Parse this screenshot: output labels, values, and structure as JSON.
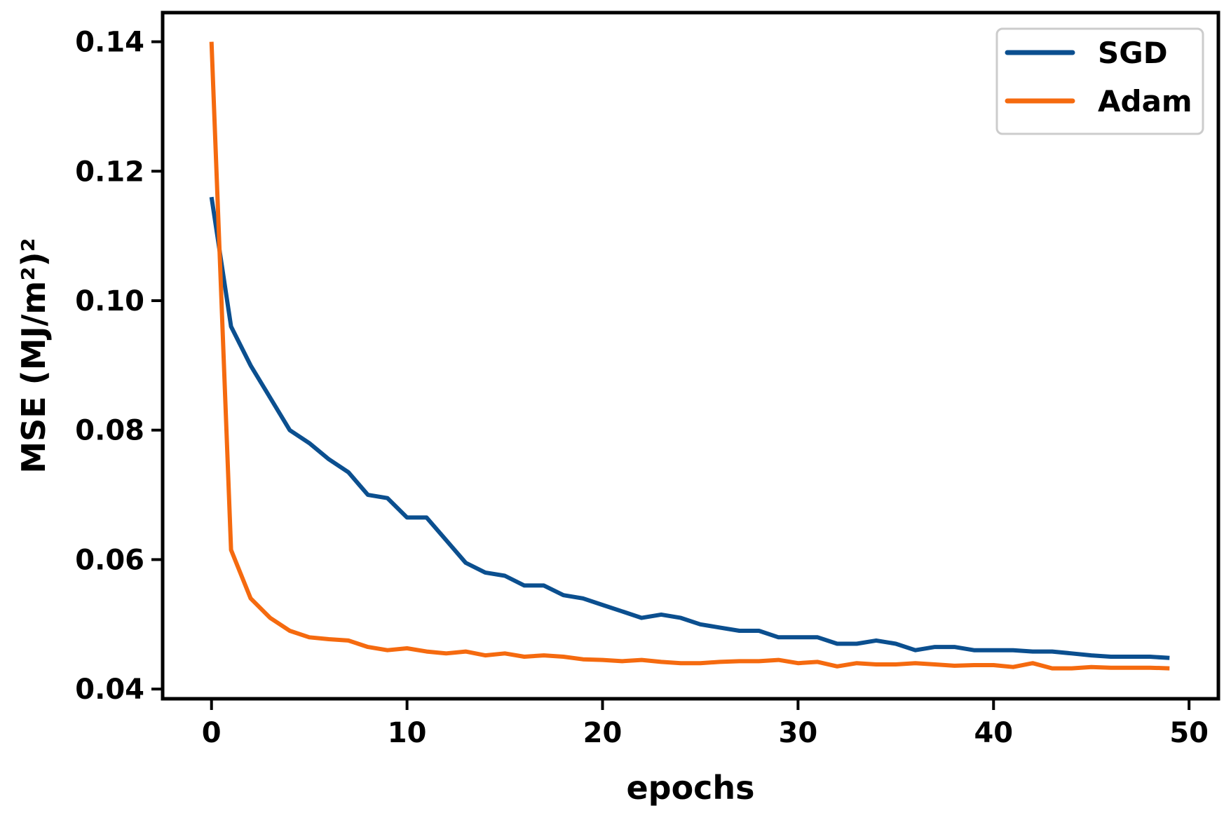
{
  "chart_data": {
    "type": "line",
    "title": "",
    "xlabel": "epochs",
    "ylabel": "MSE (MJ/m²)²",
    "xlim": [
      -2.5,
      51.5
    ],
    "ylim": [
      0.0385,
      0.1445
    ],
    "xticks": [
      0,
      10,
      20,
      30,
      40,
      50
    ],
    "yticks": [
      0.04,
      0.06,
      0.08,
      0.1,
      0.12,
      0.14
    ],
    "ytick_labels": [
      "0.04",
      "0.06",
      "0.08",
      "0.10",
      "0.12",
      "0.14"
    ],
    "grid": false,
    "legend_position": "upper right",
    "x": [
      0,
      1,
      2,
      3,
      4,
      5,
      6,
      7,
      8,
      9,
      10,
      11,
      12,
      13,
      14,
      15,
      16,
      17,
      18,
      19,
      20,
      21,
      22,
      23,
      24,
      25,
      26,
      27,
      28,
      29,
      30,
      31,
      32,
      33,
      34,
      35,
      36,
      37,
      38,
      39,
      40,
      41,
      42,
      43,
      44,
      45,
      46,
      47,
      48,
      49
    ],
    "series": [
      {
        "name": "SGD",
        "color": "#0b4f8f",
        "values": [
          0.116,
          0.096,
          0.09,
          0.085,
          0.08,
          0.078,
          0.0755,
          0.0735,
          0.07,
          0.0695,
          0.0665,
          0.0665,
          0.063,
          0.0595,
          0.058,
          0.0575,
          0.056,
          0.056,
          0.0545,
          0.054,
          0.053,
          0.052,
          0.051,
          0.0515,
          0.051,
          0.05,
          0.0495,
          0.049,
          0.049,
          0.048,
          0.048,
          0.048,
          0.047,
          0.047,
          0.0475,
          0.047,
          0.046,
          0.0465,
          0.0465,
          0.046,
          0.046,
          0.046,
          0.0458,
          0.0458,
          0.0455,
          0.0452,
          0.045,
          0.045,
          0.045,
          0.0448
        ]
      },
      {
        "name": "Adam",
        "color": "#f56a0f",
        "values": [
          0.14,
          0.0615,
          0.054,
          0.051,
          0.049,
          0.048,
          0.0477,
          0.0475,
          0.0465,
          0.046,
          0.0463,
          0.0458,
          0.0455,
          0.0458,
          0.0452,
          0.0455,
          0.045,
          0.0452,
          0.045,
          0.0446,
          0.0445,
          0.0443,
          0.0445,
          0.0442,
          0.044,
          0.044,
          0.0442,
          0.0443,
          0.0443,
          0.0445,
          0.044,
          0.0442,
          0.0435,
          0.044,
          0.0438,
          0.0438,
          0.044,
          0.0438,
          0.0436,
          0.0437,
          0.0437,
          0.0434,
          0.044,
          0.0432,
          0.0432,
          0.0434,
          0.0433,
          0.0433,
          0.0433,
          0.0432
        ]
      }
    ]
  },
  "legend": {
    "items": [
      {
        "label": "SGD",
        "color": "#0b4f8f"
      },
      {
        "label": "Adam",
        "color": "#f56a0f"
      }
    ]
  },
  "axes": {
    "xlabel": "epochs",
    "ylabel": "MSE (MJ/m²)²"
  }
}
